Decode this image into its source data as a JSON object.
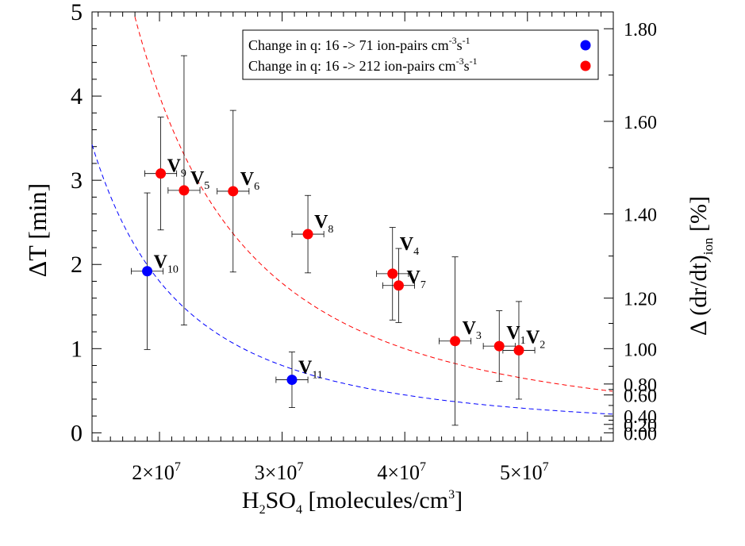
{
  "chart_data": {
    "type": "scatter",
    "title": "",
    "xlabel": {
      "pre": "H",
      "sub1": "2",
      "mid": "SO",
      "sub2": "4",
      "post": "  [molecules/cm",
      "sup": "3",
      "end": "]"
    },
    "ylabel_left": "ΔT  [min]",
    "ylabel_right": {
      "pre": "Δ (dr/dt)",
      "sub": "ion",
      "post": "  [%]"
    },
    "xlim": [
      14500000,
      57000000
    ],
    "ylim_left": [
      -0.1,
      5
    ],
    "right_axis_tick_positions_in_left_units": [
      0,
      0.1,
      0.2,
      0.45,
      0.58,
      1.0,
      1.6,
      2.6,
      3.7,
      4.8
    ],
    "x_ticks": [
      {
        "value": 20000000,
        "mantissa": "2×10",
        "exp": "7"
      },
      {
        "value": 30000000,
        "mantissa": "3×10",
        "exp": "7"
      },
      {
        "value": 40000000,
        "mantissa": "4×10",
        "exp": "7"
      },
      {
        "value": 50000000,
        "mantissa": "5×10",
        "exp": "7"
      }
    ],
    "y_ticks_left": [
      {
        "value": 0,
        "label": "0"
      },
      {
        "value": 1,
        "label": "1"
      },
      {
        "value": 2,
        "label": "2"
      },
      {
        "value": 3,
        "label": "3"
      },
      {
        "value": 4,
        "label": "4"
      },
      {
        "value": 5,
        "label": "5"
      }
    ],
    "y_ticks_right": [
      {
        "label": "0.00"
      },
      {
        "label": "0.20"
      },
      {
        "label": "0.40"
      },
      {
        "label": "0.60"
      },
      {
        "label": "0.80"
      },
      {
        "label": "1.00"
      },
      {
        "label": "1.20"
      },
      {
        "label": "1.40"
      },
      {
        "label": "1.60"
      },
      {
        "label": "1.80"
      }
    ],
    "legend": {
      "placement": "top-right",
      "entries": [
        {
          "text_main": "Change in q: 16 ->   71 ion-pairs cm",
          "sup1": "-3",
          "mid": "s",
          "sup2": "-1",
          "color": "#0000ff"
        },
        {
          "text_main": "Change in q: 16 -> 212 ion-pairs cm",
          "sup1": "-3",
          "mid": "s",
          "sup2": "-1",
          "color": "#ff0000"
        }
      ]
    },
    "series": [
      {
        "color": "#0000ff",
        "points": [
          {
            "label": "V",
            "sub": "10",
            "x": 19000000,
            "y": 1.92,
            "xerr": 1300000,
            "yerr": 0.93
          },
          {
            "label": "V",
            "sub": "11",
            "x": 30800000,
            "y": 0.63,
            "xerr": 1300000,
            "yerr": 0.33
          }
        ],
        "curve": {
          "type": "power",
          "a": 720000000000000,
          "b": -2
        }
      },
      {
        "color": "#ff0000",
        "points": [
          {
            "label": "V",
            "sub": "9",
            "x": 20100000,
            "y": 3.08,
            "xerr": 1300000,
            "yerr": 0.67
          },
          {
            "label": "V",
            "sub": "5",
            "x": 22000000,
            "y": 2.88,
            "xerr": 1300000,
            "yerr": 1.6
          },
          {
            "label": "V",
            "sub": "6",
            "x": 26000000,
            "y": 2.87,
            "xerr": 1300000,
            "yerr": 0.96
          },
          {
            "label": "V",
            "sub": "8",
            "x": 32100000,
            "y": 2.36,
            "xerr": 1300000,
            "yerr": 0.46
          },
          {
            "label": "V",
            "sub": "4",
            "x": 39000000,
            "y": 1.89,
            "xerr": 1300000,
            "yerr": 0.55
          },
          {
            "label": "V",
            "sub": "7",
            "x": 39500000,
            "y": 1.75,
            "xerr": 1300000,
            "yerr": 0.44
          },
          {
            "label": "V",
            "sub": "3",
            "x": 44100000,
            "y": 1.09,
            "xerr": 1300000,
            "yerr": 1.0
          },
          {
            "label": "V",
            "sub": "1",
            "x": 47700000,
            "y": 1.03,
            "xerr": 1300000,
            "yerr": 0.42
          },
          {
            "label": "V",
            "sub": "2",
            "x": 49300000,
            "y": 0.98,
            "xerr": 1300000,
            "yerr": 0.58
          }
        ],
        "curve": {
          "type": "power",
          "a": 1600000000000000,
          "b": -2
        }
      }
    ]
  }
}
